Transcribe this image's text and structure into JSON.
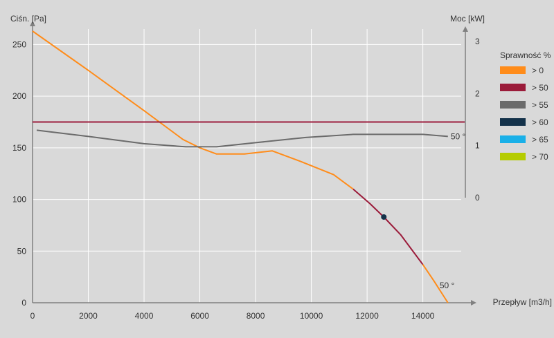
{
  "chart_data": {
    "type": "line",
    "y_left_label": "Ciśn. [Pa]",
    "y_right_label": "Moc [kW]",
    "x_label": "Przepływ [m3/h]",
    "x_ticks": [
      0,
      2000,
      4000,
      6000,
      8000,
      10000,
      12000,
      14000
    ],
    "y_left_ticks": [
      0,
      50,
      100,
      150,
      200,
      250
    ],
    "y_right_ticks": [
      0,
      1,
      2,
      3
    ],
    "x_range": [
      0,
      15500
    ],
    "y_left_range": [
      0,
      265
    ],
    "y_right_range": [
      0,
      3.2
    ],
    "grid": true,
    "legend": {
      "title": "Sprawność %",
      "position": "right",
      "entries": [
        {
          "label": "> 0",
          "color": "#ff8c1a"
        },
        {
          "label": "> 50",
          "color": "#9b1b3a"
        },
        {
          "label": "> 55",
          "color": "#6b6b6b"
        },
        {
          "label": "> 60",
          "color": "#14324a"
        },
        {
          "label": "> 65",
          "color": "#1ab0e8"
        },
        {
          "label": "> 70",
          "color": "#b5cc00"
        }
      ]
    },
    "series": [
      {
        "role": "pressure-curve",
        "axis": "left",
        "segments": [
          {
            "color": "#ff8c1a",
            "points": [
              [
                0,
                263
              ],
              [
                2000,
                225
              ],
              [
                4000,
                186
              ],
              [
                5400,
                158
              ],
              [
                6000,
                150
              ],
              [
                6600,
                144
              ],
              [
                7600,
                144
              ],
              [
                8600,
                147
              ],
              [
                9600,
                137
              ],
              [
                10800,
                124
              ],
              [
                11500,
                110
              ]
            ]
          },
          {
            "color": "#9b1b3a",
            "points": [
              [
                11500,
                110
              ],
              [
                12100,
                96
              ],
              [
                12600,
                83
              ],
              [
                13200,
                66
              ],
              [
                14000,
                37
              ]
            ]
          },
          {
            "color": "#ff8c1a",
            "points": [
              [
                14000,
                37
              ],
              [
                14400,
                21
              ],
              [
                14900,
                0
              ]
            ]
          }
        ]
      },
      {
        "role": "power-curve",
        "axis": "left",
        "color": "#6b6b6b",
        "points": [
          [
            150,
            167
          ],
          [
            2000,
            161
          ],
          [
            4000,
            154
          ],
          [
            5500,
            151
          ],
          [
            6600,
            151
          ],
          [
            8000,
            155
          ],
          [
            9800,
            160
          ],
          [
            11500,
            163
          ],
          [
            14000,
            163
          ],
          [
            14900,
            161
          ]
        ]
      },
      {
        "role": "system-line",
        "axis": "left",
        "color": "#9b1b3a",
        "points": [
          [
            0,
            175
          ],
          [
            15500,
            175
          ]
        ]
      }
    ],
    "operating_point": {
      "x": 12600,
      "y": 83,
      "color": "#14324a"
    },
    "annotations": [
      {
        "text": "50 °",
        "x": 14900,
        "y": 161
      },
      {
        "text": "50 °",
        "x": 14900,
        "y": 6
      }
    ]
  }
}
